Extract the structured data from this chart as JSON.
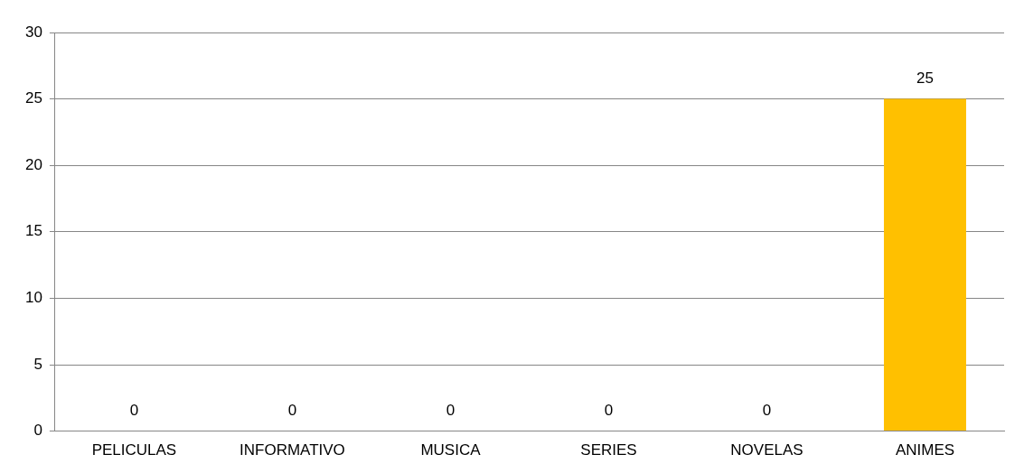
{
  "chart_data": {
    "type": "bar",
    "categories": [
      "PELICULAS",
      "INFORMATIVO",
      "MUSICA",
      "SERIES",
      "NOVELAS",
      "ANIMES"
    ],
    "values": [
      0,
      0,
      0,
      0,
      0,
      25
    ],
    "color": "#ffc000",
    "ylim": [
      0,
      30
    ],
    "yticks": [
      0,
      5,
      10,
      15,
      20,
      25,
      30
    ],
    "grid": "y",
    "data_labels": true,
    "legend": false
  }
}
